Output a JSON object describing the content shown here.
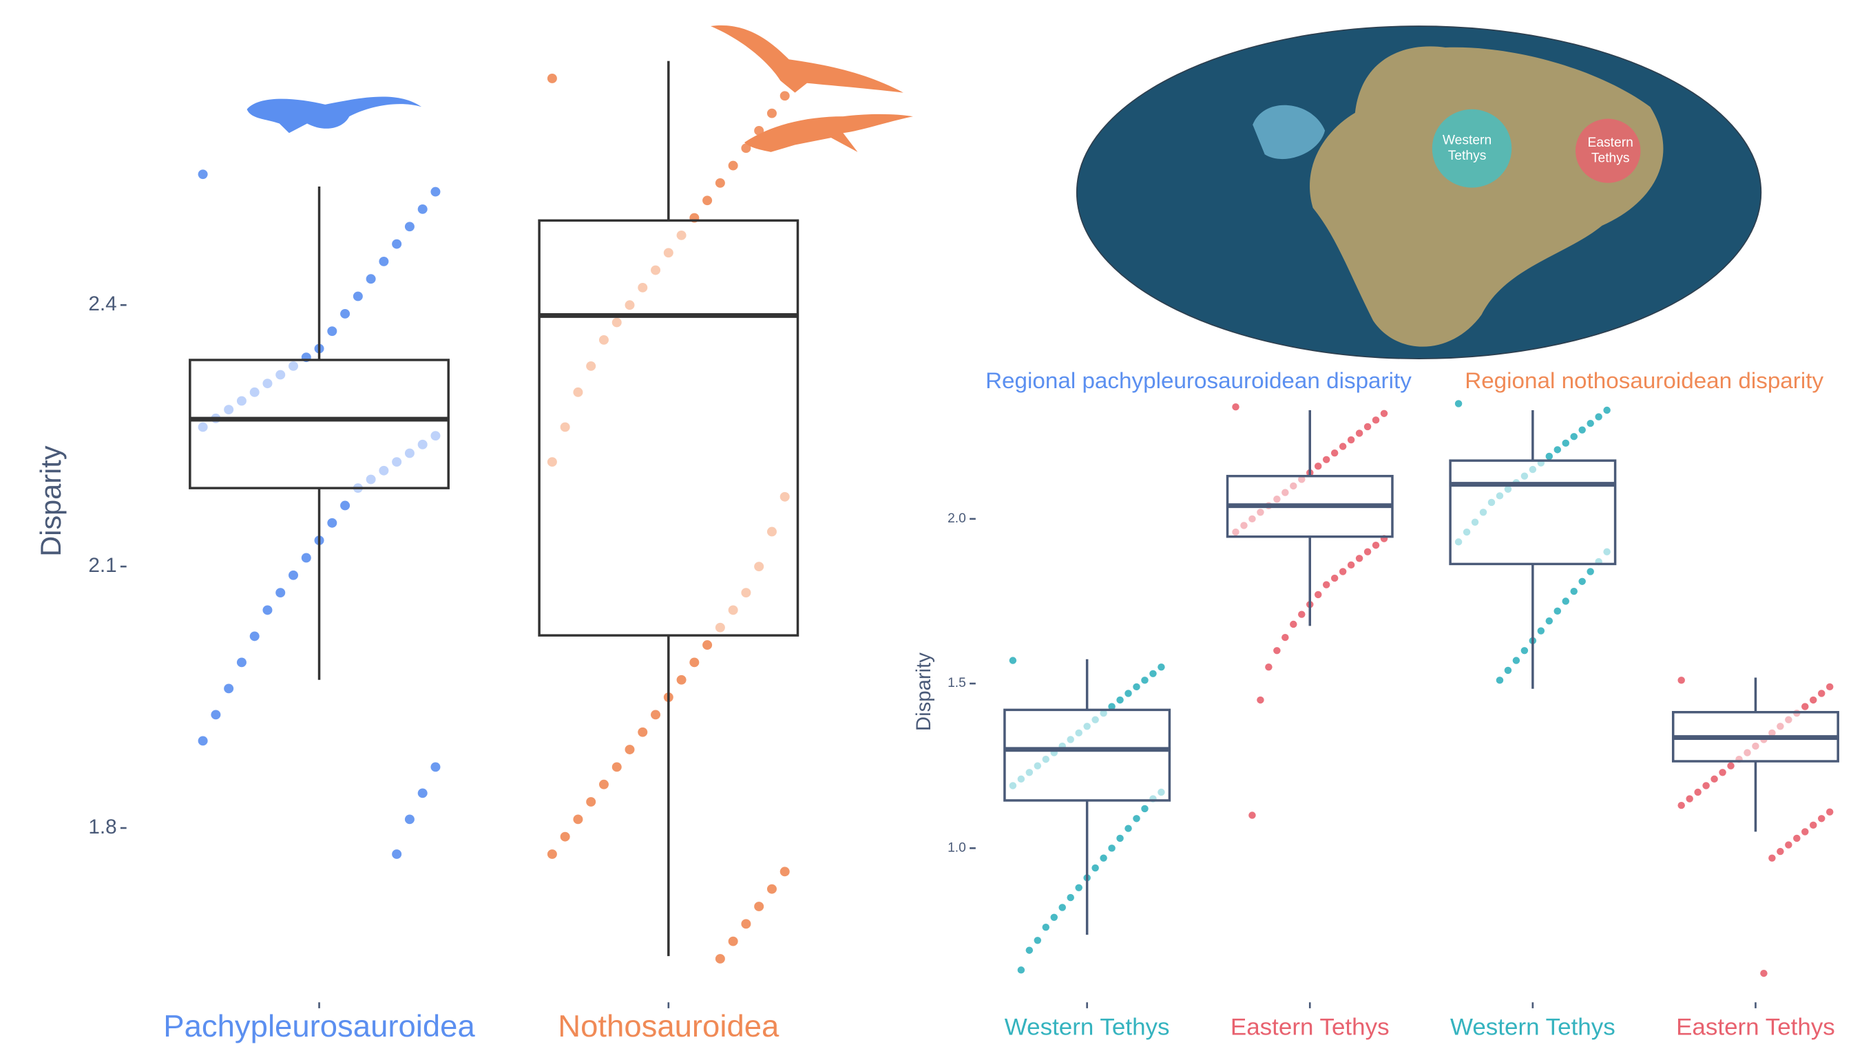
{
  "chart_data": [
    {
      "type": "box",
      "ylabel": "Disparity",
      "categories": [
        "Pachypleurosauroidea",
        "Nothosauroidea"
      ],
      "ylim": [
        1.63,
        2.72
      ],
      "yticks": [
        1.8,
        2.1,
        2.4
      ],
      "boxes": [
        {
          "color": "#5b8ff0",
          "light": "#b7cdfa",
          "min": 1.97,
          "q1": 2.19,
          "median": 2.269,
          "q3": 2.337,
          "max": 2.536,
          "points": [
            2.55,
            2.53,
            2.51,
            2.49,
            2.47,
            2.45,
            2.43,
            2.41,
            2.39,
            2.37,
            2.35,
            2.34,
            2.33,
            2.32,
            2.31,
            2.3,
            2.29,
            2.28,
            2.27,
            2.26,
            2.25,
            2.24,
            2.23,
            2.22,
            2.21,
            2.2,
            2.19,
            2.17,
            2.15,
            2.13,
            2.11,
            2.09,
            2.07,
            2.05,
            2.02,
            1.99,
            1.96,
            1.93,
            1.9,
            1.87,
            1.84,
            1.81,
            1.77
          ]
        },
        {
          "color": "#f08a56",
          "light": "#f8c4a8",
          "min": 1.653,
          "q1": 2.021,
          "median": 2.388,
          "q3": 2.497,
          "max": 2.68,
          "points": [
            2.66,
            2.64,
            2.62,
            2.6,
            2.58,
            2.56,
            2.54,
            2.52,
            2.5,
            2.48,
            2.46,
            2.44,
            2.42,
            2.4,
            2.38,
            2.36,
            2.33,
            2.3,
            2.26,
            2.22,
            2.18,
            2.14,
            2.1,
            2.07,
            2.05,
            2.03,
            2.01,
            1.99,
            1.97,
            1.95,
            1.93,
            1.91,
            1.89,
            1.87,
            1.85,
            1.83,
            1.81,
            1.79,
            1.77,
            1.75,
            1.73,
            1.71,
            1.69,
            1.67,
            1.65
          ]
        }
      ]
    },
    {
      "type": "box",
      "ylabel": "Disparity",
      "group_labels": [
        {
          "text": "Regional pachypleurosauroidean disparity",
          "color": "#5b8ff0"
        },
        {
          "text": "Regional nothosauroidean disparity",
          "color": "#f08a56"
        }
      ],
      "categories": [
        "Western Tethys",
        "Eastern Tethys",
        "Western Tethys",
        "Eastern Tethys"
      ],
      "ylim": [
        0.55,
        2.4
      ],
      "yticks": [
        {
          "value": 1,
          "label": "1.0"
        },
        1.5,
        {
          "value": 2,
          "label": "2.0"
        }
      ],
      "boxes": [
        {
          "color": "#35b3bf",
          "light": "#a8e0e5",
          "min": 0.737,
          "q1": 1.145,
          "median": 1.3,
          "q3": 1.42,
          "max": 1.574,
          "points": [
            1.57,
            1.55,
            1.53,
            1.51,
            1.49,
            1.47,
            1.45,
            1.43,
            1.41,
            1.39,
            1.37,
            1.35,
            1.33,
            1.31,
            1.29,
            1.27,
            1.25,
            1.23,
            1.21,
            1.19,
            1.17,
            1.15,
            1.12,
            1.09,
            1.06,
            1.03,
            1.0,
            0.97,
            0.94,
            0.91,
            0.88,
            0.85,
            0.82,
            0.79,
            0.76,
            0.72,
            0.69,
            0.63
          ]
        },
        {
          "color": "#e8626f",
          "light": "#f4b3b9",
          "min": 1.675,
          "q1": 1.946,
          "median": 2.04,
          "q3": 2.13,
          "max": 2.33,
          "points": [
            2.34,
            2.32,
            2.3,
            2.28,
            2.26,
            2.24,
            2.22,
            2.2,
            2.18,
            2.16,
            2.14,
            2.12,
            2.1,
            2.08,
            2.06,
            2.04,
            2.02,
            2.0,
            1.98,
            1.96,
            1.94,
            1.92,
            1.9,
            1.88,
            1.86,
            1.84,
            1.82,
            1.8,
            1.77,
            1.74,
            1.71,
            1.68,
            1.64,
            1.6,
            1.55,
            1.45,
            1.1
          ]
        },
        {
          "color": "#35b3bf",
          "light": "#a8e0e5",
          "min": 1.484,
          "q1": 1.863,
          "median": 2.105,
          "q3": 2.177,
          "max": 2.33,
          "points": [
            2.35,
            2.33,
            2.31,
            2.29,
            2.27,
            2.25,
            2.23,
            2.21,
            2.19,
            2.17,
            2.15,
            2.13,
            2.11,
            2.09,
            2.07,
            2.05,
            2.02,
            1.99,
            1.96,
            1.93,
            1.9,
            1.87,
            1.84,
            1.81,
            1.78,
            1.75,
            1.72,
            1.69,
            1.66,
            1.63,
            1.6,
            1.57,
            1.54,
            1.51
          ]
        },
        {
          "color": "#e8626f",
          "light": "#f4b3b9",
          "min": 1.05,
          "q1": 1.264,
          "median": 1.336,
          "q3": 1.413,
          "max": 1.518,
          "points": [
            1.51,
            1.49,
            1.47,
            1.45,
            1.43,
            1.41,
            1.39,
            1.37,
            1.35,
            1.33,
            1.31,
            1.29,
            1.27,
            1.25,
            1.23,
            1.21,
            1.19,
            1.17,
            1.15,
            1.13,
            1.11,
            1.09,
            1.07,
            1.05,
            1.03,
            1.01,
            0.99,
            0.97,
            0.62
          ]
        }
      ]
    }
  ],
  "map": {
    "labels": [
      "Western\nTethys",
      "Eastern\nTethys"
    ]
  }
}
